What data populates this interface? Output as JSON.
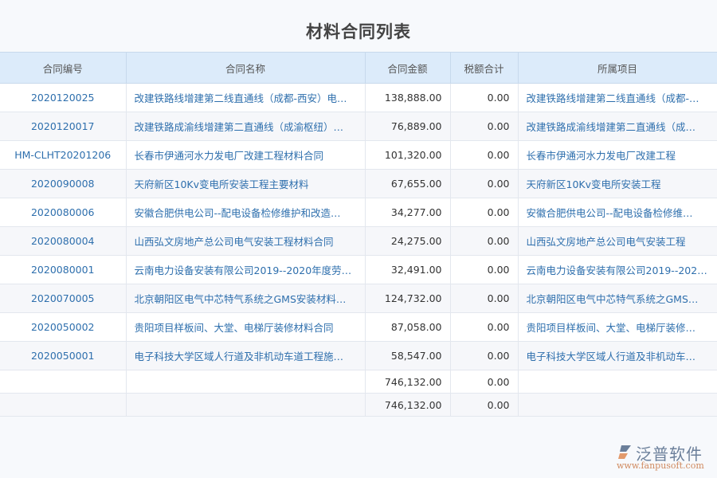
{
  "title": "材料合同列表",
  "columns": [
    "合同编号",
    "合同名称",
    "合同金额",
    "税额合计",
    "所属项目"
  ],
  "rows": [
    {
      "no": "2020120025",
      "name": "改建铁路线增建第二线直通线（成都-西安）电…",
      "amount": "138,888.00",
      "tax": "0.00",
      "project": "改建铁路线增建第二线直通线（成都-…"
    },
    {
      "no": "2020120017",
      "name": "改建铁路成渝线增建第二直通线（成渝枢纽）…",
      "amount": "76,889.00",
      "tax": "0.00",
      "project": "改建铁路成渝线增建第二直通线（成…"
    },
    {
      "no": "HM-CLHT20201206",
      "name": "长春市伊通河水力发电厂改建工程材料合同",
      "amount": "101,320.00",
      "tax": "0.00",
      "project": "长春市伊通河水力发电厂改建工程"
    },
    {
      "no": "2020090008",
      "name": "天府新区10Kv变电所安装工程主要材料",
      "amount": "67,655.00",
      "tax": "0.00",
      "project": "天府新区10Kv变电所安装工程"
    },
    {
      "no": "2020080006",
      "name": "安徽合肥供电公司--配电设备检修维护和改造…",
      "amount": "34,277.00",
      "tax": "0.00",
      "project": "安徽合肥供电公司--配电设备检修维…"
    },
    {
      "no": "2020080004",
      "name": "山西弘文房地产总公司电气安装工程材料合同",
      "amount": "24,275.00",
      "tax": "0.00",
      "project": "山西弘文房地产总公司电气安装工程"
    },
    {
      "no": "2020080001",
      "name": "云南电力设备安装有限公司2019--2020年度劳…",
      "amount": "32,491.00",
      "tax": "0.00",
      "project": "云南电力设备安装有限公司2019--202…"
    },
    {
      "no": "2020070005",
      "name": "北京朝阳区电气中芯特气系统之GMS安装材料…",
      "amount": "124,732.00",
      "tax": "0.00",
      "project": "北京朝阳区电气中芯特气系统之GMS…"
    },
    {
      "no": "2020050002",
      "name": "贵阳项目样板间、大堂、电梯厅装修材料合同",
      "amount": "87,058.00",
      "tax": "0.00",
      "project": "贵阳项目样板间、大堂、电梯厅装修…"
    },
    {
      "no": "2020050001",
      "name": "电子科技大学区域人行道及非机动车道工程施…",
      "amount": "58,547.00",
      "tax": "0.00",
      "project": "电子科技大学区域人行道及非机动车…"
    }
  ],
  "totals": [
    {
      "amount": "746,132.00",
      "tax": "0.00"
    },
    {
      "amount": "746,132.00",
      "tax": "0.00"
    }
  ],
  "logo": {
    "name": "泛普软件",
    "url": "www.fanpusoft.com"
  },
  "colors": {
    "header_bg": "#dcebfa",
    "link": "#2e6fad"
  }
}
